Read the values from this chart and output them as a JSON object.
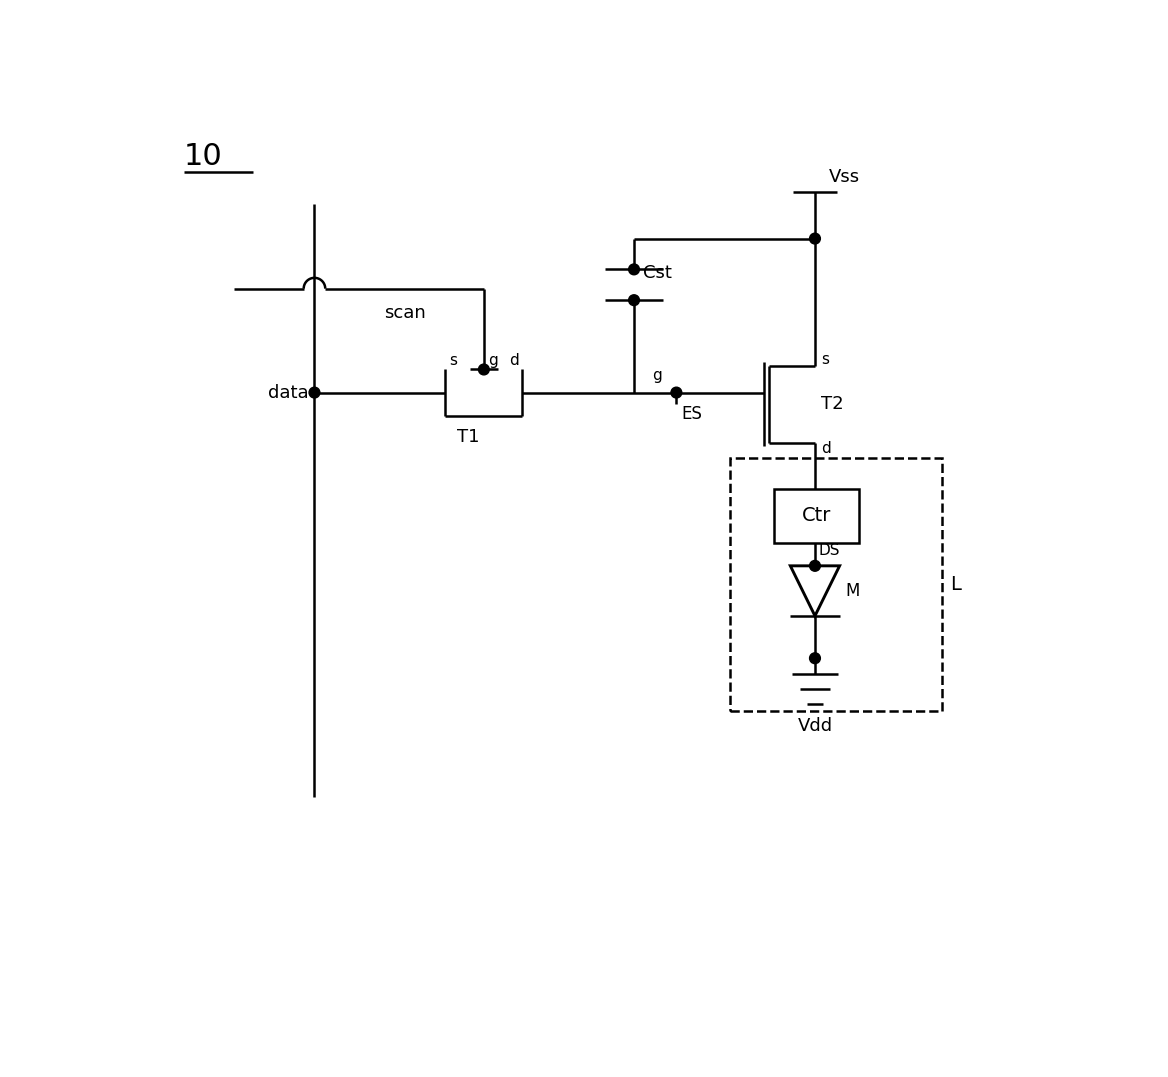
{
  "bg_color": "#ffffff",
  "line_color": "#000000",
  "lw": 1.8,
  "figsize": [
    11.68,
    10.77
  ],
  "dpi": 100,
  "label_10": "10",
  "label_scan": "scan",
  "label_data": "data",
  "label_T1": "T1",
  "label_T2": "T2",
  "label_ES": "ES",
  "label_Cst": "Cst",
  "label_Vss": "Vss",
  "label_Ctr": "Ctr",
  "label_DS": "DS",
  "label_M": "M",
  "label_Vdd": "Vdd",
  "label_L": "L",
  "label_s": "s",
  "label_d": "d",
  "label_g": "g"
}
